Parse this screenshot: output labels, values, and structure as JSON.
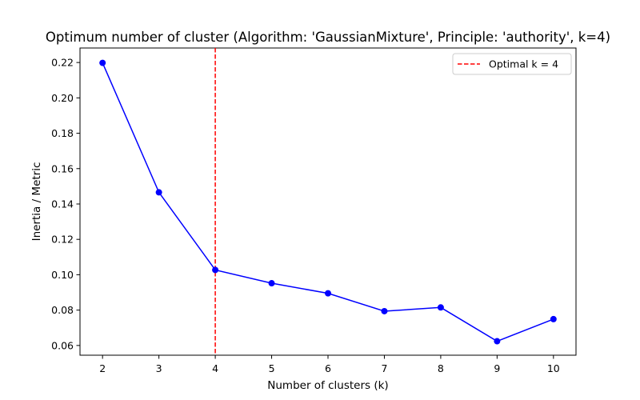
{
  "chart_data": {
    "type": "line",
    "title": "Optimum number of cluster (Algorithm: 'GaussianMixture', Principle: 'authority', k=4)",
    "xlabel": "Number of clusters (k)",
    "ylabel": "Inertia / Metric",
    "x": [
      2,
      3,
      4,
      5,
      6,
      7,
      8,
      9,
      10
    ],
    "series": [
      {
        "values": [
          0.2198,
          0.1466,
          0.1027,
          0.0952,
          0.0895,
          0.0794,
          0.0815,
          0.0624,
          0.0749
        ],
        "color": "#0000ff",
        "marker": "circle"
      }
    ],
    "xlim": [
      1.6,
      10.4
    ],
    "ylim": [
      0.0545,
      0.2282
    ],
    "xticks": [
      2,
      3,
      4,
      5,
      6,
      7,
      8,
      9,
      10
    ],
    "yticks": [
      0.06,
      0.08,
      0.1,
      0.12,
      0.14,
      0.16,
      0.18,
      0.2,
      0.22
    ],
    "ytick_labels": [
      "0.06",
      "0.08",
      "0.10",
      "0.12",
      "0.14",
      "0.16",
      "0.18",
      "0.20",
      "0.22"
    ],
    "vline": {
      "x": 4,
      "color": "#ff0000",
      "style": "dashed",
      "label": "Optimal k = 4"
    },
    "legend": {
      "position": "top-right",
      "entries": [
        "Optimal k = 4"
      ]
    },
    "grid": false
  }
}
